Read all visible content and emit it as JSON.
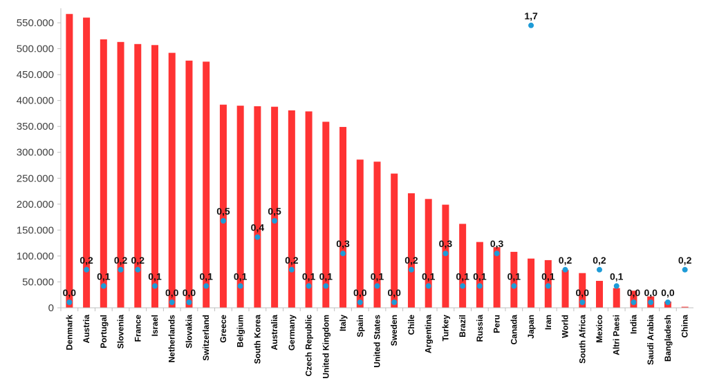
{
  "chart_data": {
    "type": "bar",
    "categories": [
      "Denmark",
      "Austria",
      "Portugal",
      "Slovenia",
      "France",
      "Israel",
      "Netherlands",
      "Slovakia",
      "Switzerland",
      "Greece",
      "Belgium",
      "South Korea",
      "Australia",
      "Germany",
      "Czech Republic",
      "United Kingdom",
      "Italy",
      "Spain",
      "United States",
      "Sweden",
      "Chile",
      "Argentina",
      "Turkey",
      "Brazil",
      "Russia",
      "Peru",
      "Canada",
      "Japan",
      "Iran",
      "World",
      "South Africa",
      "Mexico",
      "Altri Paesi",
      "India",
      "Saudi Arabia",
      "Bangladesh",
      "China"
    ],
    "series": [
      {
        "type": "bar",
        "color": "#ff3333",
        "values": [
          567000,
          560000,
          518000,
          513000,
          509000,
          507000,
          492000,
          477000,
          475000,
          392000,
          390000,
          389000,
          388000,
          381000,
          379000,
          359000,
          349000,
          286000,
          282000,
          259000,
          221000,
          210000,
          199000,
          162000,
          127000,
          117000,
          108000,
          95000,
          92000,
          73000,
          67000,
          52000,
          38000,
          33000,
          22000,
          12000,
          2000
        ]
      },
      {
        "type": "scatter",
        "color": "#1e9bd7",
        "values": [
          0.0,
          0.2,
          0.1,
          0.2,
          0.2,
          0.1,
          0.0,
          0.0,
          0.1,
          0.5,
          0.1,
          0.4,
          0.5,
          0.2,
          0.1,
          0.1,
          0.3,
          0.0,
          0.1,
          0.0,
          0.2,
          0.1,
          0.3,
          0.1,
          0.1,
          0.3,
          0.1,
          1.7,
          0.1,
          0.2,
          0.0,
          0.2,
          0.1,
          0.0,
          0.0,
          0.0,
          0.2
        ],
        "labels": [
          "0,0",
          "0,2",
          "0,1",
          "0,2",
          "0,2",
          "0,1",
          "0,0",
          "0,0",
          "0,1",
          "0,5",
          "0,1",
          "0,4",
          "0,5",
          "0,2",
          "0,1",
          "0,1",
          "0,3",
          "0,0",
          "0,1",
          "0,0",
          "0,2",
          "0,1",
          "0,3",
          "0,1",
          "0,1",
          "0,3",
          "0,1",
          "1,7",
          "0,1",
          "0,2",
          "0,0",
          "0,2",
          "0,1",
          "0,0",
          "0,0",
          "0,0",
          "0,2"
        ],
        "label_color": "#111111"
      }
    ],
    "y_ticks": [
      "0",
      "50.000",
      "100.000",
      "150.000",
      "200.000",
      "250.000",
      "300.000",
      "350.000",
      "400.000",
      "450.000",
      "500.000",
      "550.000"
    ],
    "ylim": [
      0,
      570000
    ],
    "grid": false,
    "legend": "none",
    "tick_color": "#404040",
    "axis_color": "#bfbfbf"
  }
}
